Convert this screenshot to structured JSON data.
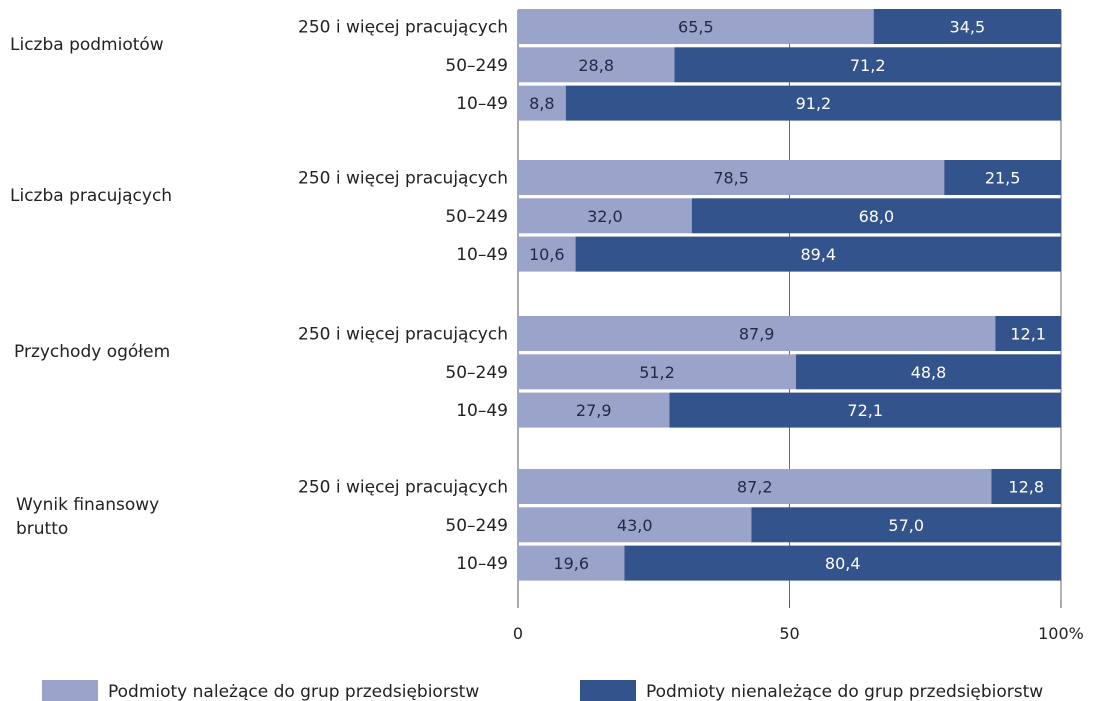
{
  "colors": {
    "member": "#9aa3c9",
    "nonmember": "#33538c",
    "bar_text_light": "#1f2a44",
    "bar_text_dark": "#ffffff",
    "axis": "#555555",
    "grid": "#6a6a6a"
  },
  "chart_data": {
    "type": "bar",
    "orientation": "horizontal",
    "stacked": true,
    "xlim": [
      0,
      100
    ],
    "x_ticks": [
      "0",
      "50",
      "100%"
    ],
    "x_tick_values": [
      0,
      50,
      100
    ],
    "grid": true,
    "legend_position": "bottom",
    "series": [
      {
        "name": "Podmioty należące do grup przedsiębiorstw",
        "color_key": "member"
      },
      {
        "name": "Podmioty nienależące do grup przedsiębiorstw",
        "color_key": "nonmember"
      }
    ],
    "groups": [
      {
        "label": "Liczba podmiotów",
        "rows": [
          {
            "label": "250 i więcej pracujących",
            "values": [
              65.5,
              34.5
            ],
            "display": [
              "65,5",
              "34,5"
            ]
          },
          {
            "label": "50–249",
            "values": [
              28.8,
              71.2
            ],
            "display": [
              "28,8",
              "71,2"
            ]
          },
          {
            "label": "10–49",
            "values": [
              8.8,
              91.2
            ],
            "display": [
              "8,8",
              "91,2"
            ]
          }
        ]
      },
      {
        "label": "Liczba pracujących",
        "rows": [
          {
            "label": "250 i więcej pracujących",
            "values": [
              78.5,
              21.5
            ],
            "display": [
              "78,5",
              "21,5"
            ]
          },
          {
            "label": "50–249",
            "values": [
              32.0,
              68.0
            ],
            "display": [
              "32,0",
              "68,0"
            ]
          },
          {
            "label": "10–49",
            "values": [
              10.6,
              89.4
            ],
            "display": [
              "10,6",
              "89,4"
            ]
          }
        ]
      },
      {
        "label": "Przychody ogółem",
        "rows": [
          {
            "label": "250 i więcej pracujących",
            "values": [
              87.9,
              12.1
            ],
            "display": [
              "87,9",
              "12,1"
            ]
          },
          {
            "label": "50–249",
            "values": [
              51.2,
              48.8
            ],
            "display": [
              "51,2",
              "48,8"
            ]
          },
          {
            "label": "10–49",
            "values": [
              27.9,
              72.1
            ],
            "display": [
              "27,9",
              "72,1"
            ]
          }
        ]
      },
      {
        "label": "Wynik finansowy brutto",
        "label_lines": [
          "Wynik finansowy",
          "brutto"
        ],
        "rows": [
          {
            "label": "250 i więcej pracujących",
            "values": [
              87.2,
              12.8
            ],
            "display": [
              "87,2",
              "12,8"
            ]
          },
          {
            "label": "50–249",
            "values": [
              43.0,
              57.0
            ],
            "display": [
              "43,0",
              "57,0"
            ]
          },
          {
            "label": "10–49",
            "values": [
              19.6,
              80.4
            ],
            "display": [
              "19,6",
              "80,4"
            ]
          }
        ]
      }
    ]
  }
}
